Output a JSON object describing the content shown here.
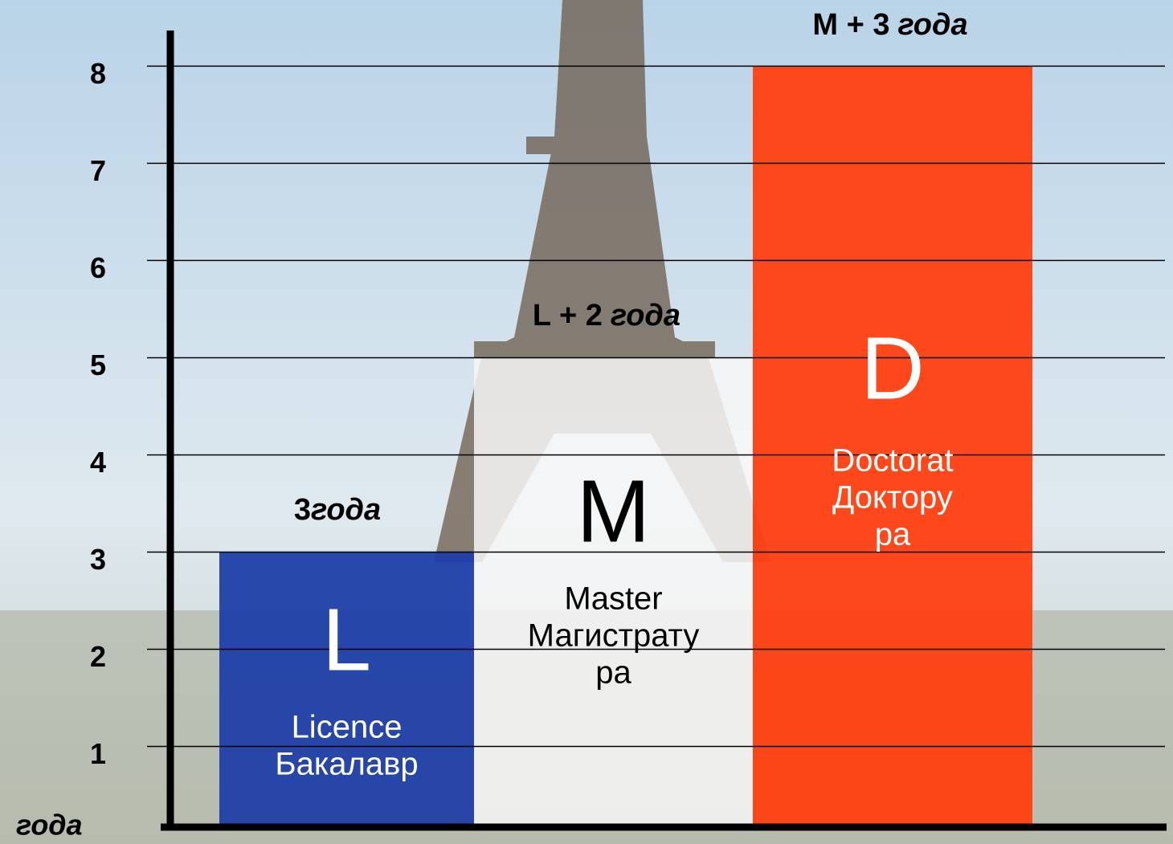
{
  "chart_data": {
    "type": "bar",
    "y_axis_label": "года",
    "categories": [
      "L",
      "M",
      "D"
    ],
    "descriptions": [
      [
        "Licence",
        "Бакалавр"
      ],
      [
        "Master",
        "Магистрату",
        "ра"
      ],
      [
        "Doctorat",
        "Доктору",
        "ра"
      ]
    ],
    "annotations": [
      {
        "prefix": "3",
        "unit": "года"
      },
      {
        "prefix": "L + 2",
        "unit": "года"
      },
      {
        "prefix": "M + 3",
        "unit": "года"
      }
    ],
    "values": [
      3,
      5,
      8
    ],
    "colors": [
      "#1f3fa8",
      "#f7f7f7",
      "#ff3f10"
    ],
    "text_colors": [
      "#ffffff",
      "#000000",
      "#ffffff"
    ],
    "ylim": [
      0.17,
      8.35
    ],
    "yticks": [
      1,
      2,
      3,
      4,
      5,
      6,
      7,
      8
    ],
    "grid": true
  }
}
